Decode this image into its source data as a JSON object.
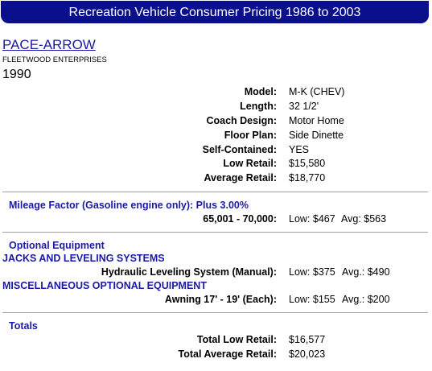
{
  "header": {
    "title": "Recreation Vehicle Consumer Pricing 1986 to 2003"
  },
  "vehicle": {
    "name": "PACE-ARROW",
    "manufacturer": "FLEETWOOD ENTERPRISES",
    "year": "1990"
  },
  "specs": [
    {
      "label": "Model:",
      "value": "M-K (CHEV)"
    },
    {
      "label": "Length:",
      "value": "32 1/2'"
    },
    {
      "label": "Coach Design:",
      "value": "Motor Home"
    },
    {
      "label": "Floor Plan:",
      "value": "Side Dinette"
    },
    {
      "label": "Self-Contained:",
      "value": "YES"
    },
    {
      "label": "Low Retail:",
      "value": "$15,580"
    },
    {
      "label": "Average Retail:",
      "value": "$18,770"
    }
  ],
  "mileage": {
    "title": "Mileage Factor (Gasoline engine only):  Plus 3.00%",
    "range_label": "65,001 - 70,000:",
    "low": "Low: $467",
    "avg": "Avg: $563"
  },
  "optional": {
    "title": "Optional Equipment",
    "categories": [
      {
        "name": "JACKS AND LEVELING SYSTEMS",
        "item_label": "Hydraulic Leveling System (Manual):",
        "low": "Low: $375",
        "avg": "Avg.: $490"
      },
      {
        "name": "MISCELLANEOUS OPTIONAL EQUIPMENT",
        "item_label": "Awning 17' - 19' (Each):",
        "low": "Low: $155",
        "avg": "Avg.: $200"
      }
    ]
  },
  "totals": {
    "title": "Totals",
    "low_label": "Total Low Retail:",
    "low_value": "$16,577",
    "avg_label": "Total Average Retail:",
    "avg_value": "$20,023"
  }
}
